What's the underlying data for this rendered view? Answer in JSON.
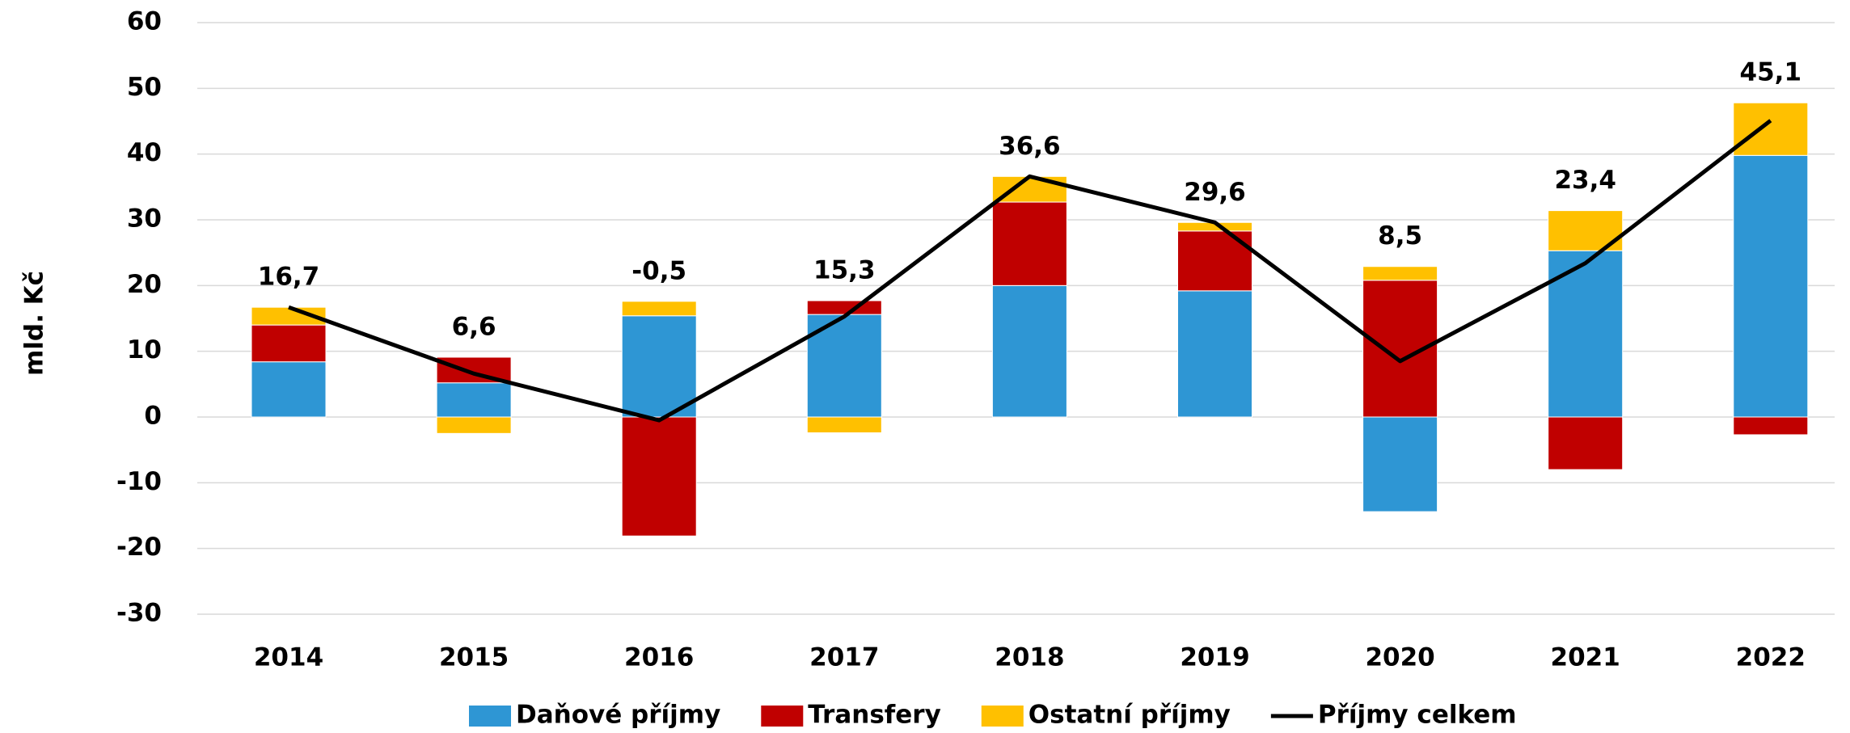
{
  "chart_data": {
    "type": "bar",
    "y_label": "mld. Kč",
    "categories": [
      "2014",
      "2015",
      "2016",
      "2017",
      "2018",
      "2019",
      "2020",
      "2021",
      "2022"
    ],
    "series": [
      {
        "name": "Daňové příjmy",
        "color": "#2e96d4",
        "values": [
          8.4,
          5.2,
          15.4,
          15.6,
          20.0,
          19.2,
          -14.4,
          25.3,
          39.8
        ]
      },
      {
        "name": "Transfery",
        "color": "#c00000",
        "values": [
          5.6,
          3.9,
          -18.1,
          2.1,
          12.7,
          9.1,
          20.8,
          -8.0,
          -2.7
        ]
      },
      {
        "name": "Ostatní příjmy",
        "color": "#ffc000",
        "values": [
          2.7,
          -2.5,
          2.2,
          -2.4,
          3.9,
          1.3,
          2.1,
          6.1,
          8.0
        ]
      },
      {
        "name": "Příjmy celkem",
        "type": "line",
        "color": "#000000",
        "values": [
          16.7,
          6.6,
          -0.5,
          15.3,
          36.6,
          29.6,
          8.5,
          23.4,
          45.1
        ],
        "value_labels": [
          "16,7",
          "6,6",
          "-0,5",
          "15,3",
          "36,6",
          "29,6",
          "8,5",
          "23,4",
          "45,1"
        ],
        "value_label_colors": [
          "#000000",
          "#000000",
          "#ff0000",
          "#000000",
          "#000000",
          "#000000",
          "#000000",
          "#000000",
          "#000000"
        ]
      }
    ],
    "ylim": [
      -30,
      60
    ],
    "yticks": [
      -30,
      -20,
      -10,
      0,
      10,
      20,
      30,
      40,
      50,
      60
    ],
    "grid": true,
    "legend": "bottom"
  }
}
